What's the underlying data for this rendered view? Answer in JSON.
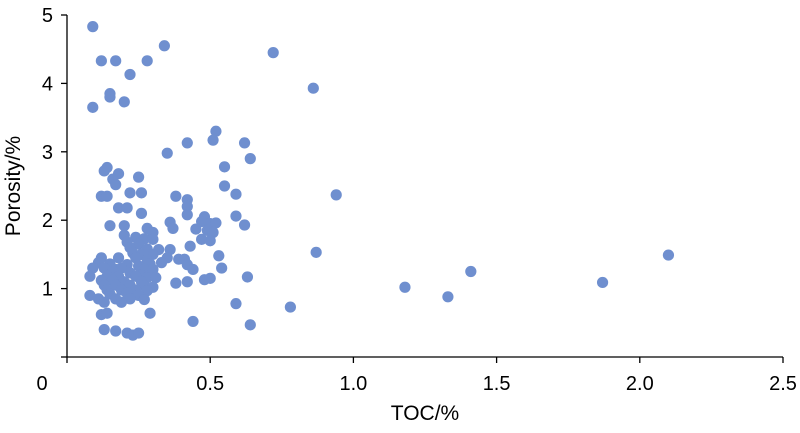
{
  "chart_data": {
    "type": "scatter",
    "title": "",
    "xlabel": "TOC/%",
    "ylabel": "Porosity/%",
    "xlim": [
      0,
      2.5
    ],
    "ylim": [
      0,
      5
    ],
    "xticks": [
      "0",
      "0.5",
      "1.0",
      "1.5",
      "2.0",
      "2.5"
    ],
    "yticks": [
      "1",
      "2",
      "3",
      "4",
      "5"
    ],
    "grid": false,
    "legend": "none",
    "marker_color": "#6f8fcf",
    "series": [
      {
        "points": [
          [
            0.09,
            4.83
          ],
          [
            0.12,
            4.33
          ],
          [
            0.17,
            4.33
          ],
          [
            0.22,
            4.13
          ],
          [
            0.28,
            4.33
          ],
          [
            0.34,
            4.55
          ],
          [
            0.72,
            4.45
          ],
          [
            0.86,
            3.93
          ],
          [
            0.15,
            3.85
          ],
          [
            0.15,
            3.8
          ],
          [
            0.09,
            3.65
          ],
          [
            0.2,
            3.73
          ],
          [
            0.52,
            3.3
          ],
          [
            0.51,
            3.17
          ],
          [
            0.42,
            3.13
          ],
          [
            0.62,
            3.13
          ],
          [
            0.35,
            2.98
          ],
          [
            0.64,
            2.9
          ],
          [
            0.14,
            2.77
          ],
          [
            0.13,
            2.72
          ],
          [
            0.18,
            2.68
          ],
          [
            0.25,
            2.63
          ],
          [
            0.55,
            2.78
          ],
          [
            0.16,
            2.6
          ],
          [
            0.17,
            2.52
          ],
          [
            0.55,
            2.5
          ],
          [
            0.12,
            2.35
          ],
          [
            0.14,
            2.35
          ],
          [
            0.22,
            2.4
          ],
          [
            0.26,
            2.4
          ],
          [
            0.38,
            2.35
          ],
          [
            0.42,
            2.3
          ],
          [
            0.59,
            2.38
          ],
          [
            0.94,
            2.37
          ],
          [
            0.18,
            2.18
          ],
          [
            0.21,
            2.18
          ],
          [
            0.42,
            2.2
          ],
          [
            0.42,
            2.08
          ],
          [
            0.26,
            2.1
          ],
          [
            0.48,
            2.05
          ],
          [
            0.59,
            2.06
          ],
          [
            0.36,
            1.97
          ],
          [
            0.47,
            1.98
          ],
          [
            0.5,
            1.95
          ],
          [
            0.52,
            1.96
          ],
          [
            0.62,
            1.93
          ],
          [
            0.15,
            1.92
          ],
          [
            0.2,
            1.92
          ],
          [
            0.28,
            1.88
          ],
          [
            0.3,
            1.82
          ],
          [
            0.37,
            1.88
          ],
          [
            0.45,
            1.87
          ],
          [
            0.49,
            1.85
          ],
          [
            0.51,
            1.82
          ],
          [
            0.2,
            1.78
          ],
          [
            0.24,
            1.75
          ],
          [
            0.27,
            1.73
          ],
          [
            0.3,
            1.72
          ],
          [
            0.47,
            1.72
          ],
          [
            0.5,
            1.7
          ],
          [
            0.21,
            1.68
          ],
          [
            0.25,
            1.65
          ],
          [
            0.43,
            1.62
          ],
          [
            0.22,
            1.6
          ],
          [
            0.28,
            1.58
          ],
          [
            0.32,
            1.57
          ],
          [
            0.36,
            1.57
          ],
          [
            0.87,
            1.53
          ],
          [
            0.23,
            1.52
          ],
          [
            0.26,
            1.5
          ],
          [
            0.3,
            1.5
          ],
          [
            0.53,
            1.48
          ],
          [
            2.1,
            1.49
          ],
          [
            0.12,
            1.45
          ],
          [
            0.18,
            1.45
          ],
          [
            0.24,
            1.45
          ],
          [
            0.28,
            1.42
          ],
          [
            0.35,
            1.45
          ],
          [
            0.39,
            1.43
          ],
          [
            0.41,
            1.43
          ],
          [
            0.11,
            1.38
          ],
          [
            0.15,
            1.36
          ],
          [
            0.21,
            1.35
          ],
          [
            0.25,
            1.33
          ],
          [
            0.29,
            1.36
          ],
          [
            0.33,
            1.38
          ],
          [
            0.42,
            1.35
          ],
          [
            0.09,
            1.3
          ],
          [
            0.13,
            1.3
          ],
          [
            0.17,
            1.28
          ],
          [
            0.19,
            1.3
          ],
          [
            0.27,
            1.28
          ],
          [
            0.3,
            1.28
          ],
          [
            0.44,
            1.28
          ],
          [
            0.54,
            1.3
          ],
          [
            0.16,
            1.25
          ],
          [
            0.22,
            1.23
          ],
          [
            0.26,
            1.2
          ],
          [
            1.41,
            1.25
          ],
          [
            0.08,
            1.18
          ],
          [
            0.14,
            1.18
          ],
          [
            0.18,
            1.18
          ],
          [
            0.24,
            1.18
          ],
          [
            0.28,
            1.16
          ],
          [
            0.31,
            1.16
          ],
          [
            0.63,
            1.17
          ],
          [
            0.12,
            1.12
          ],
          [
            0.16,
            1.12
          ],
          [
            0.2,
            1.1
          ],
          [
            0.26,
            1.1
          ],
          [
            0.38,
            1.08
          ],
          [
            0.42,
            1.1
          ],
          [
            0.48,
            1.13
          ],
          [
            0.5,
            1.15
          ],
          [
            0.13,
            1.05
          ],
          [
            0.17,
            1.05
          ],
          [
            0.22,
            1.05
          ],
          [
            0.27,
            1.04
          ],
          [
            0.3,
            1.02
          ],
          [
            1.87,
            1.09
          ],
          [
            1.18,
            1.02
          ],
          [
            0.14,
            0.98
          ],
          [
            0.19,
            0.98
          ],
          [
            0.24,
            0.98
          ],
          [
            0.28,
            0.97
          ],
          [
            0.15,
            0.92
          ],
          [
            0.21,
            0.93
          ],
          [
            0.25,
            0.9
          ],
          [
            0.08,
            0.9
          ],
          [
            0.11,
            0.85
          ],
          [
            0.17,
            0.85
          ],
          [
            0.22,
            0.85
          ],
          [
            0.27,
            0.84
          ],
          [
            1.33,
            0.88
          ],
          [
            0.13,
            0.8
          ],
          [
            0.19,
            0.8
          ],
          [
            0.59,
            0.78
          ],
          [
            0.78,
            0.73
          ],
          [
            0.12,
            0.62
          ],
          [
            0.14,
            0.64
          ],
          [
            0.29,
            0.64
          ],
          [
            0.44,
            0.52
          ],
          [
            0.64,
            0.47
          ],
          [
            0.13,
            0.4
          ],
          [
            0.17,
            0.38
          ],
          [
            0.21,
            0.35
          ],
          [
            0.23,
            0.32
          ],
          [
            0.25,
            0.35
          ]
        ]
      }
    ]
  }
}
